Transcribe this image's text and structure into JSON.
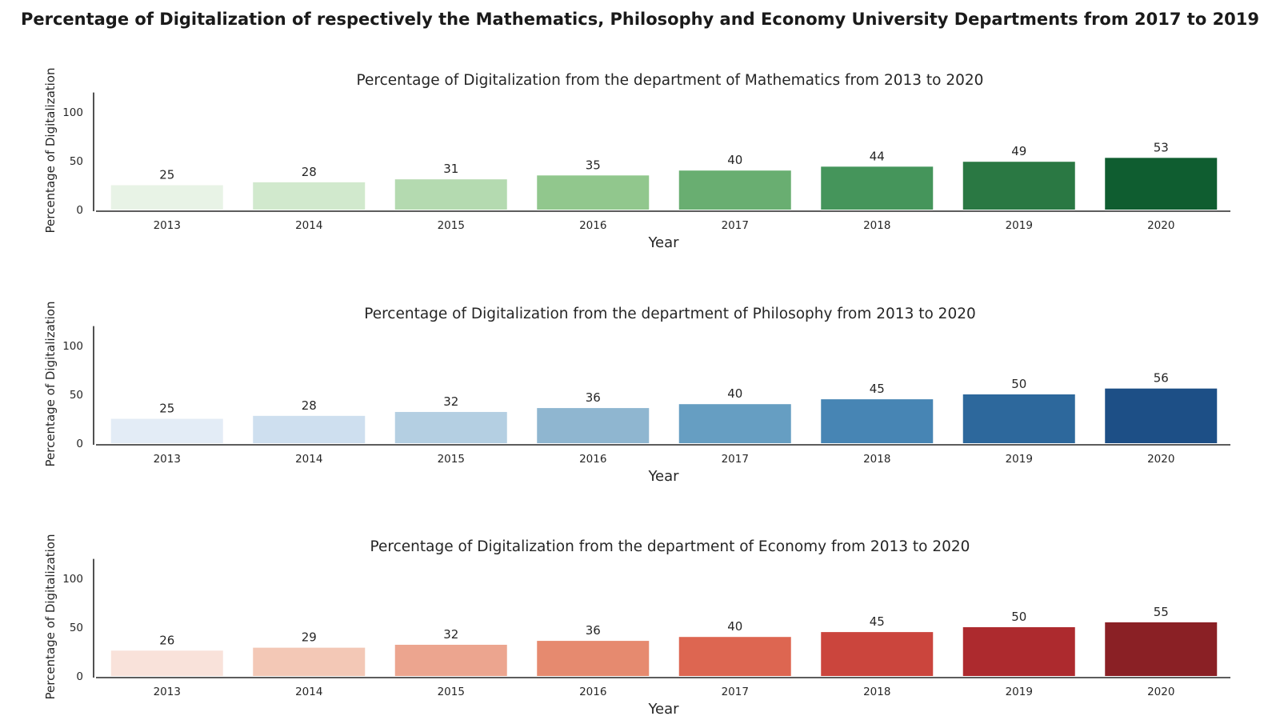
{
  "title": "Percentage of Digitalization of respectively the Mathematics, Philosophy and Economy University Departments from 2017 to 2019",
  "chart_data": [
    {
      "type": "bar",
      "title": "Percentage of Digitalization from the department of Mathematics from 2013 to 2020",
      "xlabel": "Year",
      "ylabel": "Percentage of Digitalization",
      "categories": [
        "2013",
        "2014",
        "2015",
        "2016",
        "2017",
        "2018",
        "2019",
        "2020"
      ],
      "values": [
        25,
        28,
        31,
        35,
        40,
        44,
        49,
        53
      ],
      "value_labels": [
        "25",
        "28",
        "31",
        "35",
        "40",
        "44",
        "49",
        "53"
      ],
      "yticks": [
        "0",
        "50",
        "100"
      ],
      "ylim": [
        0,
        120
      ],
      "grid": false,
      "colors": [
        "#e8f3e6",
        "#d1e9cd",
        "#b4dab0",
        "#91c78d",
        "#69ae71",
        "#45955b",
        "#2a7843",
        "#0f5d30"
      ]
    },
    {
      "type": "bar",
      "title": "Percentage of Digitalization from the department of Philosophy from 2013 to 2020",
      "xlabel": "Year",
      "ylabel": "Percentage of Digitalization",
      "categories": [
        "2013",
        "2014",
        "2015",
        "2016",
        "2017",
        "2018",
        "2019",
        "2020"
      ],
      "values": [
        25,
        28,
        32,
        36,
        40,
        45,
        50,
        56
      ],
      "value_labels": [
        "25",
        "28",
        "32",
        "36",
        "40",
        "45",
        "50",
        "56"
      ],
      "yticks": [
        "0",
        "50",
        "100"
      ],
      "ylim": [
        0,
        120
      ],
      "grid": false,
      "colors": [
        "#e3ecf6",
        "#cedfef",
        "#b4cfe2",
        "#8fb6d0",
        "#669ec2",
        "#4785b4",
        "#2d689c",
        "#1d4f86"
      ]
    },
    {
      "type": "bar",
      "title": "Percentage of Digitalization from the department of Economy from 2013 to 2020",
      "xlabel": "Year",
      "ylabel": "Percentage of Digitalization",
      "categories": [
        "2013",
        "2014",
        "2015",
        "2016",
        "2017",
        "2018",
        "2019",
        "2020"
      ],
      "values": [
        26,
        29,
        32,
        36,
        40,
        45,
        50,
        55
      ],
      "value_labels": [
        "26",
        "29",
        "32",
        "36",
        "40",
        "45",
        "50",
        "55"
      ],
      "yticks": [
        "0",
        "50",
        "100"
      ],
      "ylim": [
        0,
        120
      ],
      "grid": false,
      "colors": [
        "#f9e2da",
        "#f3c8b6",
        "#eca58f",
        "#e68a6f",
        "#dd6651",
        "#cb453d",
        "#ad2a2e",
        "#8a2025"
      ]
    }
  ]
}
